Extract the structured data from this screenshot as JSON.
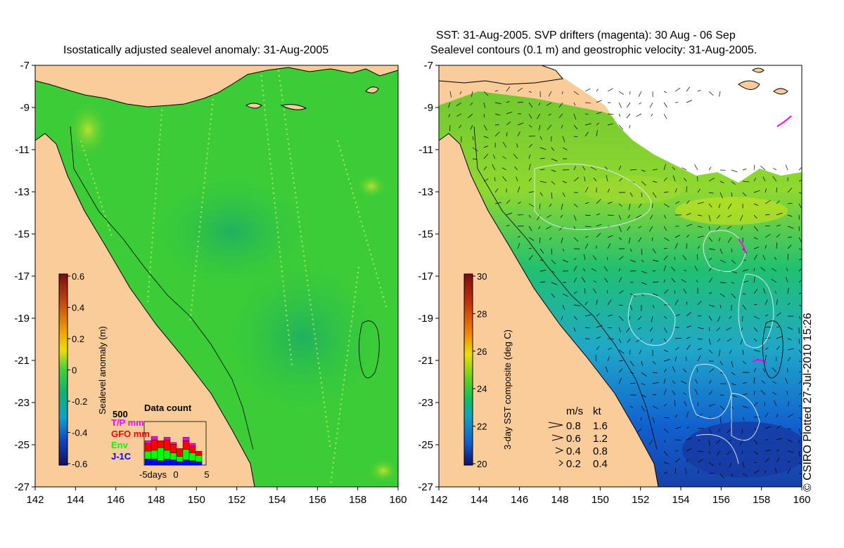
{
  "left_panel": {
    "title": "Isostatically adjusted sealevel anomaly: 31-Aug-2005",
    "x_ticks": [
      "142",
      "144",
      "146",
      "148",
      "150",
      "152",
      "154",
      "156",
      "158",
      "160"
    ],
    "y_ticks": [
      "-7",
      "-9",
      "-11",
      "-13",
      "-15",
      "-17",
      "-19",
      "-21",
      "-23",
      "-25",
      "-27"
    ],
    "colorbar": {
      "label": "Sealevel anomaly (m)",
      "ticks": [
        "0.6",
        "0.4",
        "0.2",
        "0",
        "-0.2",
        "-0.4",
        "-0.6"
      ],
      "colors": [
        "#7a0c12",
        "#c24a10",
        "#f0a000",
        "#e8e000",
        "#40d040",
        "#10b070",
        "#10a0d0",
        "#1040c0",
        "#101060"
      ]
    },
    "data_count": {
      "title": "Data count",
      "max_label": "500",
      "legend": [
        {
          "label": "T/P mm",
          "color": "#ff00ff"
        },
        {
          "label": "GFO mm",
          "color": "#ff0000"
        },
        {
          "label": "Env",
          "color": "#00ff00"
        },
        {
          "label": "J-1C",
          "color": "#0000ff"
        }
      ],
      "x_labels": [
        "-5days",
        "0",
        "5"
      ],
      "bars": [
        {
          "blue": 70,
          "green": 90,
          "red": 90,
          "magenta": 30
        },
        {
          "blue": 70,
          "green": 100,
          "red": 120,
          "magenta": 40
        },
        {
          "blue": 50,
          "green": 150,
          "red": 80,
          "magenta": 0
        },
        {
          "blue": 70,
          "green": 100,
          "red": 120,
          "magenta": 30
        },
        {
          "blue": 60,
          "green": 80,
          "red": 100,
          "magenta": 20
        },
        {
          "blue": 40,
          "green": 60,
          "red": 90,
          "magenta": 0
        },
        {
          "blue": 60,
          "green": 120,
          "red": 100,
          "magenta": 40
        },
        {
          "blue": 50,
          "green": 90,
          "red": 80,
          "magenta": 30
        },
        {
          "blue": 40,
          "green": 70,
          "red": 50,
          "magenta": 0
        }
      ]
    }
  },
  "right_panel": {
    "title_line1": "SST: 31-Aug-2005. SVP drifters (magenta): 30 Aug - 06 Sep",
    "title_line2": "Sealevel contours (0.1 m) and geostrophic velocity: 31-Aug-2005.",
    "x_ticks": [
      "142",
      "144",
      "146",
      "148",
      "150",
      "152",
      "154",
      "156",
      "158",
      "160"
    ],
    "y_ticks": [
      "-7",
      "-9",
      "-11",
      "-13",
      "-15",
      "-17",
      "-19",
      "-21",
      "-23",
      "-25",
      "-27"
    ],
    "colorbar": {
      "label": "3-day SST composite (deg C)",
      "ticks": [
        "30",
        "28",
        "26",
        "24",
        "22",
        "20"
      ],
      "colors": [
        "#7a0c12",
        "#c43010",
        "#f08000",
        "#e8e000",
        "#60d020",
        "#10c060",
        "#10a0c0",
        "#1060d0",
        "#101070"
      ]
    },
    "velocity_legend": {
      "header_ms": "m/s",
      "header_kt": "kt",
      "rows": [
        {
          "ms": "0.8",
          "kt": "1.6"
        },
        {
          "ms": "0.6",
          "kt": "1.2"
        },
        {
          "ms": "0.4",
          "kt": "0.8"
        },
        {
          "ms": "0.2",
          "kt": "0.4"
        }
      ]
    }
  },
  "copyright": "© CSIRO Plotted 27-Jul-2010 15:26",
  "colors": {
    "land": "#f9cc9a",
    "sea_green": "#30c840",
    "sea_light": "#50d050",
    "missing": "#ffffff"
  }
}
